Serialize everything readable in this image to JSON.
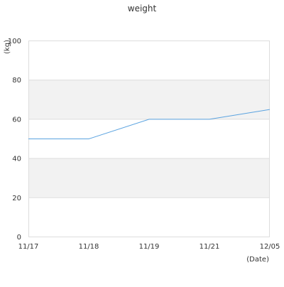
{
  "chart_data": {
    "type": "line",
    "title": "weight",
    "xlabel": "(Date)",
    "ylabel": "(kg)",
    "categories": [
      "11/17",
      "11/18",
      "11/19",
      "11/21",
      "12/05"
    ],
    "series": [
      {
        "values": [
          50,
          50,
          60,
          60,
          65
        ],
        "color": "#5ba3e0"
      }
    ],
    "ylim": [
      0,
      100
    ],
    "yticks": [
      "0",
      "20",
      "40",
      "60",
      "80",
      "100"
    ],
    "grid": true,
    "band_color": "#f2f2f2",
    "grid_color": "#dddddd"
  }
}
